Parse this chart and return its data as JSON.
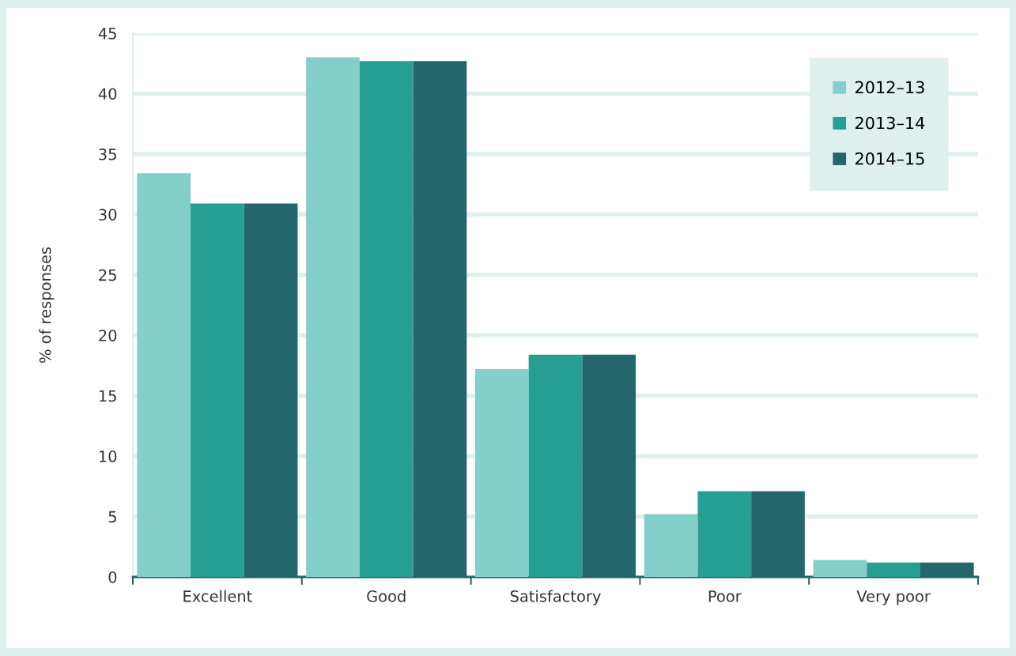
{
  "chart_data": {
    "type": "bar",
    "ylabel": "% of responses",
    "categories": [
      "Excellent",
      "Good",
      "Satisfactory",
      "Poor",
      "Very poor"
    ],
    "series": [
      {
        "name": "2012–13",
        "color": "#84cfc9",
        "values": [
          33.4,
          43.0,
          17.2,
          5.2,
          1.4
        ]
      },
      {
        "name": "2013–14",
        "color": "#279e93",
        "values": [
          30.9,
          42.7,
          18.4,
          7.1,
          1.2
        ]
      },
      {
        "name": "2014–15",
        "color": "#23666b",
        "values": [
          30.9,
          42.7,
          18.4,
          7.1,
          1.2
        ]
      }
    ],
    "ylim": [
      0,
      45
    ],
    "yticks": [
      0,
      5,
      10,
      15,
      20,
      25,
      30,
      35,
      40,
      45
    ],
    "grid": "y",
    "legend": "top right"
  }
}
